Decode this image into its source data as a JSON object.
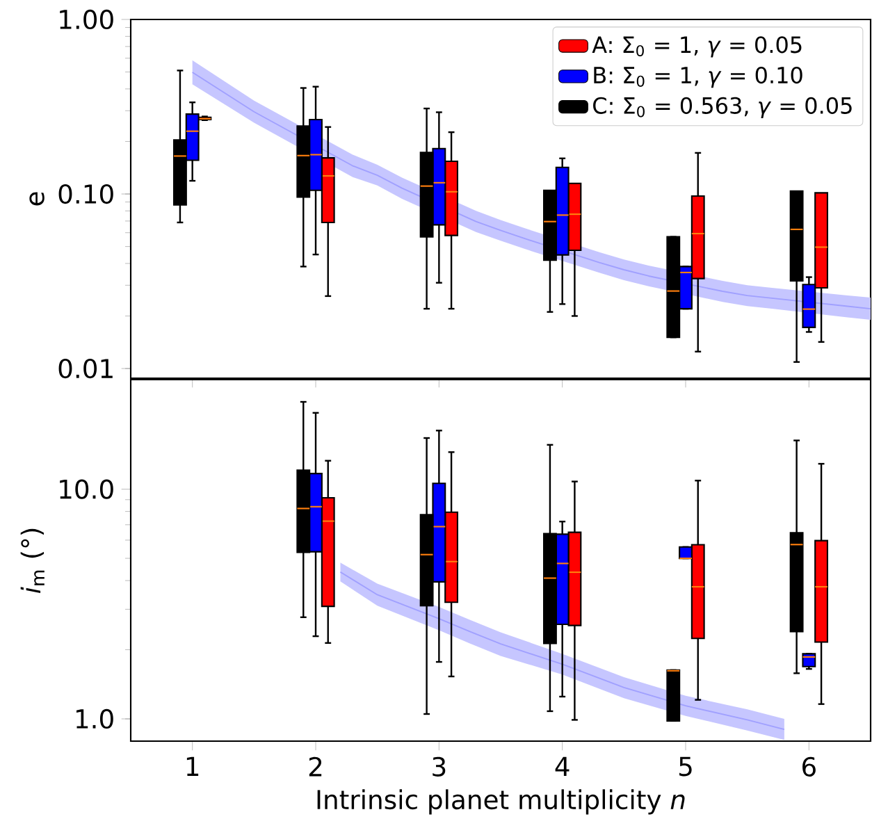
{
  "chart_data": [
    {
      "type": "box",
      "ylabel": "e",
      "log": "y",
      "xlim": [
        0.5,
        6.5
      ],
      "xticks": [
        1,
        2,
        3,
        4,
        5,
        6
      ],
      "ylim": [
        0.0088,
        1.0
      ],
      "yticks": [
        {
          "value": 0.01,
          "label": "0.01"
        },
        {
          "value": 0.1,
          "label": "0.10"
        },
        {
          "value": 1.0,
          "label": "1.00"
        }
      ],
      "tick_labels": "y",
      "legend": "top right",
      "series": [
        {
          "type": "line",
          "color": "#a0a0ff",
          "x": [
            1,
            1.5,
            2.3,
            2.5,
            2.7,
            3.3,
            3.5,
            3.7,
            4.3,
            4.5,
            4.7,
            5.3,
            5.5,
            5.7,
            6.3,
            6.5
          ],
          "values": [
            0.498,
            0.296,
            0.145,
            0.128,
            0.108,
            0.0696,
            0.0619,
            0.0554,
            0.0405,
            0.0368,
            0.0339,
            0.0277,
            0.0262,
            0.0253,
            0.0228,
            0.022
          ],
          "upper": [
            0.584,
            0.343,
            0.168,
            0.147,
            0.124,
            0.08,
            0.071,
            0.0635,
            0.0464,
            0.0421,
            0.0389,
            0.0318,
            0.03,
            0.029,
            0.0263,
            0.0255
          ],
          "lower": [
            0.425,
            0.256,
            0.125,
            0.112,
            0.0939,
            0.0606,
            0.054,
            0.0483,
            0.0354,
            0.0321,
            0.0296,
            0.0241,
            0.0228,
            0.022,
            0.0197,
            0.019
          ]
        },
        {
          "name": "A: Σ$_{0}$ = 1, *γ* = 0.05",
          "color": "#ff0000",
          "x": [
            1,
            2,
            3,
            4,
            5,
            6
          ],
          "boxes": [
            {
              "low": 0.265,
              "q1": 0.267,
              "median": 0.27,
              "q3": 0.275,
              "high": 0.278
            },
            {
              "low": 0.026,
              "q1": 0.0687,
              "median": 0.127,
              "q3": 0.161,
              "high": 0.242
            },
            {
              "low": 0.022,
              "q1": 0.0579,
              "median": 0.103,
              "q3": 0.154,
              "high": 0.226
            },
            {
              "low": 0.02,
              "q1": 0.0476,
              "median": 0.0766,
              "q3": 0.115,
              "high": null
            },
            {
              "low": 0.0125,
              "q1": 0.0328,
              "median": 0.0593,
              "q3": 0.0973,
              "high": 0.172
            },
            {
              "low": 0.0142,
              "q1": 0.029,
              "median": 0.0496,
              "q3": 0.1015,
              "high": null
            }
          ]
        },
        {
          "name": "B: Σ$_{0}$ = 1, *γ* = 0.10",
          "color": "#0000ff",
          "x": [
            1,
            2,
            3,
            4,
            5,
            6
          ],
          "boxes": [
            {
              "low": 0.119,
              "q1": 0.156,
              "median": 0.229,
              "q3": 0.287,
              "high": 0.335
            },
            {
              "low": 0.045,
              "q1": 0.105,
              "median": 0.168,
              "q3": 0.267,
              "high": 0.412
            },
            {
              "low": 0.031,
              "q1": 0.0666,
              "median": 0.116,
              "q3": 0.182,
              "high": 0.294
            },
            {
              "low": 0.0234,
              "q1": 0.0448,
              "median": 0.0757,
              "q3": 0.142,
              "high": 0.16
            },
            {
              "low": 0.022,
              "q1": 0.022,
              "median": 0.0355,
              "q3": 0.0384,
              "high": 0.0384
            },
            {
              "low": 0.0162,
              "q1": 0.0172,
              "median": 0.0219,
              "q3": 0.0303,
              "high": 0.0334
            }
          ]
        },
        {
          "name": "C: Σ$_{0}$ = 0.563, *γ* = 0.05",
          "color": "#000000",
          "x": [
            1,
            2,
            3,
            4,
            5,
            6
          ],
          "boxes": [
            {
              "low": 0.0687,
              "q1": 0.0867,
              "median": 0.165,
              "q3": 0.204,
              "high": 0.51
            },
            {
              "low": 0.0384,
              "q1": 0.096,
              "median": 0.166,
              "q3": 0.245,
              "high": 0.405
            },
            {
              "low": 0.022,
              "q1": 0.0568,
              "median": 0.111,
              "q3": 0.173,
              "high": 0.309
            },
            {
              "low": 0.0211,
              "q1": 0.0418,
              "median": 0.0695,
              "q3": 0.105,
              "high": null
            },
            {
              "low": 0.0151,
              "q1": 0.0151,
              "median": 0.0278,
              "q3": 0.0568,
              "high": 0.0568
            },
            {
              "low": 0.0109,
              "q1": 0.0318,
              "median": 0.0627,
              "q3": 0.104,
              "high": null
            }
          ]
        }
      ]
    },
    {
      "type": "box",
      "xlabel": "Intrinsic planet multiplicity *n*",
      "ylabel": "*i*$_{m}$ (°)",
      "log": "y",
      "xlim": [
        0.5,
        6.5
      ],
      "xticks": [
        1,
        2,
        3,
        4,
        5,
        6
      ],
      "ylim": [
        0.8,
        30
      ],
      "yticks": [
        {
          "value": 1,
          "label": "1.0"
        },
        {
          "value": 10,
          "label": "10.0"
        }
      ],
      "series": [
        {
          "type": "line",
          "color": "#a0a0ff",
          "x": [
            2.2,
            2.5,
            3,
            3.25,
            3.5,
            4,
            4.5,
            5,
            5.5,
            5.8
          ],
          "values": [
            4.36,
            3.47,
            2.73,
            2.4,
            2.12,
            1.73,
            1.37,
            1.14,
            0.99,
            0.9
          ],
          "upper": [
            4.79,
            3.88,
            3.07,
            2.7,
            2.38,
            1.92,
            1.52,
            1.26,
            1.1,
            1.0
          ],
          "lower": [
            3.97,
            3.11,
            2.43,
            2.13,
            1.88,
            1.56,
            1.23,
            1.03,
            0.89,
            0.81
          ]
        },
        {
          "color": "#ff0000",
          "x": [
            2,
            3,
            4,
            5,
            6
          ],
          "boxes": [
            {
              "low": 2.14,
              "q1": 3.09,
              "median": 7.26,
              "q3": 9.17,
              "high": 13.3
            },
            {
              "low": 1.53,
              "q1": 3.22,
              "median": 4.84,
              "q3": 7.94,
              "high": 14.5
            },
            {
              "low": 0.99,
              "q1": 2.55,
              "median": 4.35,
              "q3": 6.49,
              "high": 10.8
            },
            {
              "low": 1.21,
              "q1": 2.24,
              "median": 3.76,
              "q3": 5.73,
              "high": 10.9
            },
            {
              "low": 1.16,
              "q1": 2.16,
              "median": 3.76,
              "q3": 5.97,
              "high": 12.9
            }
          ]
        },
        {
          "color": "#0000ff",
          "x": [
            2,
            3,
            4,
            5,
            6
          ],
          "boxes": [
            {
              "low": 2.29,
              "q1": 5.34,
              "median": 8.39,
              "q3": 11.7,
              "high": 21.5
            },
            {
              "low": 1.77,
              "q1": 3.95,
              "median": 6.87,
              "q3": 10.6,
              "high": 18.0
            },
            {
              "low": 1.25,
              "q1": 2.58,
              "median": 4.75,
              "q3": 6.37,
              "high": 7.23
            },
            {
              "low": 5.0,
              "q1": 5.0,
              "median": 5.0,
              "q3": 5.6,
              "high": 5.6
            },
            {
              "low": 1.65,
              "q1": 1.69,
              "median": 1.86,
              "q3": 1.92,
              "high": 1.92
            }
          ]
        },
        {
          "color": "#000000",
          "x": [
            2,
            3,
            4,
            5,
            6
          ],
          "boxes": [
            {
              "low": 2.77,
              "q1": 5.31,
              "median": 8.24,
              "q3": 12.1,
              "high": 24.0
            },
            {
              "low": 1.05,
              "q1": 3.11,
              "median": 5.19,
              "q3": 7.74,
              "high": 16.7
            },
            {
              "low": 1.08,
              "q1": 2.13,
              "median": 4.1,
              "q3": 6.4,
              "high": 15.6
            },
            {
              "low": 0.98,
              "q1": 0.98,
              "median": 1.62,
              "q3": 1.63,
              "high": 1.63
            },
            {
              "low": 1.58,
              "q1": 2.4,
              "median": 5.74,
              "q3": 6.46,
              "high": 16.3
            }
          ]
        }
      ]
    }
  ]
}
